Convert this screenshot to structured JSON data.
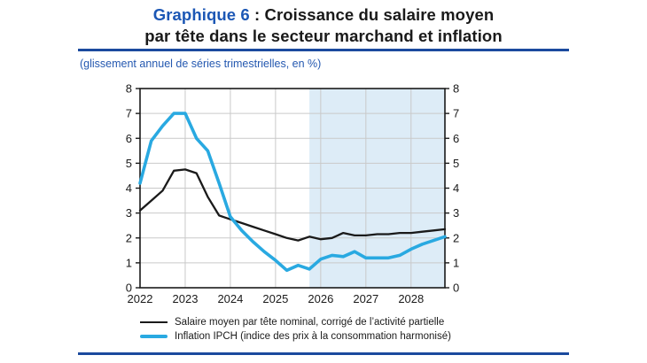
{
  "header": {
    "title_prefix": "Graphique 6",
    "title_rest": " : Croissance du salaire moyen",
    "title_line2": "par tête dans le secteur marchand et inflation",
    "subtitle": "(glissement annuel de séries trimestrielles, en %)"
  },
  "colors": {
    "title_accent": "#1c57b5",
    "rule": "#1b4a9e",
    "subtitle": "#2458b0",
    "wage_line": "#1a1a1a",
    "inflation_line": "#29a9e1",
    "projection_shading": "#ddecf7",
    "grid": "#c9c9c9",
    "axis": "#1a1a1a",
    "tick_text": "#1a1a1a"
  },
  "chart_data": {
    "type": "line",
    "title": "Graphique 6 : Croissance du salaire moyen par tête dans le secteur marchand et inflation",
    "subtitle": "(glissement annuel de séries trimestrielles, en %)",
    "xlabel": "",
    "ylabel": "",
    "ylim": [
      0,
      8
    ],
    "y_ticks": [
      "0",
      "1",
      "2",
      "3",
      "4",
      "5",
      "6",
      "7",
      "8"
    ],
    "dual_y_axis": true,
    "grid": true,
    "legend_position": "bottom",
    "x_tick_labels": [
      "2022",
      "2023",
      "2024",
      "2025",
      "2026",
      "2027",
      "2028"
    ],
    "categories": [
      "2022 T1",
      "2022 T2",
      "2022 T3",
      "2022 T4",
      "2023 T1",
      "2023 T2",
      "2023 T3",
      "2023 T4",
      "2024 T1",
      "2024 T2",
      "2024 T3",
      "2024 T4",
      "2025 T1",
      "2025 T2",
      "2025 T3",
      "2025 T4",
      "2026 T1",
      "2026 T2",
      "2026 T3",
      "2026 T4",
      "2027 T1",
      "2027 T2",
      "2027 T3",
      "2027 T4",
      "2028 T1",
      "2028 T2",
      "2028 T3",
      "2028 T4"
    ],
    "series": [
      {
        "name": "Salaire moyen par tête nominal, corrigé de l’activité partielle",
        "color": "#1a1a1a",
        "values": [
          3.1,
          3.5,
          3.9,
          4.7,
          4.75,
          4.6,
          3.65,
          2.9,
          2.75,
          2.6,
          2.45,
          2.3,
          2.15,
          2.0,
          1.9,
          2.05,
          1.95,
          2.0,
          2.2,
          2.1,
          2.1,
          2.15,
          2.15,
          2.2,
          2.2,
          2.25,
          2.3,
          2.35
        ]
      },
      {
        "name": "Inflation IPCH (indice des prix à la consommation harmonisé)",
        "color": "#29a9e1",
        "values": [
          4.2,
          5.9,
          6.5,
          7.0,
          7.0,
          6.0,
          5.5,
          4.2,
          2.85,
          2.3,
          1.85,
          1.45,
          1.1,
          0.7,
          0.9,
          0.75,
          1.15,
          1.3,
          1.25,
          1.45,
          1.2,
          1.2,
          1.2,
          1.3,
          1.55,
          1.75,
          1.9,
          2.05
        ]
      }
    ],
    "projection_shading": {
      "start_category": "2025 T4",
      "start_index": 15,
      "color": "#ddecf7"
    }
  }
}
